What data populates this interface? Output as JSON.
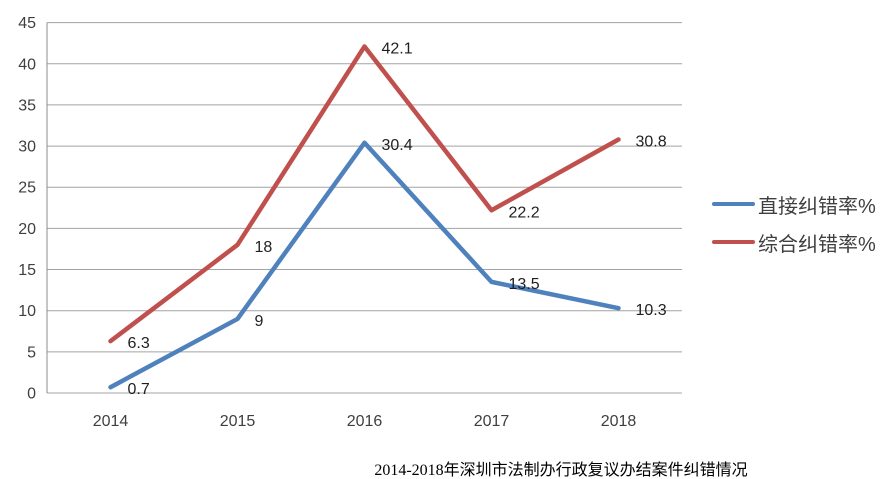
{
  "chart_data": {
    "type": "line",
    "title": "2014-2018年深圳市法制办行政复议办结案件纠错情况",
    "xlabel": "",
    "ylabel": "",
    "categories": [
      "2014",
      "2015",
      "2016",
      "2017",
      "2018"
    ],
    "series": [
      {
        "name": "直接纠错率%",
        "values": [
          0.7,
          9,
          30.4,
          13.5,
          10.3
        ],
        "labels": [
          "0.7",
          "9",
          "30.4",
          "13.5",
          "10.3"
        ],
        "color": "#4F81BD"
      },
      {
        "name": "综合纠错率%",
        "values": [
          6.3,
          18,
          42.1,
          22.2,
          30.8
        ],
        "labels": [
          "6.3",
          "18",
          "42.1",
          "22.2",
          "30.8"
        ],
        "color": "#C0504D"
      }
    ],
    "ylim": [
      0,
      45
    ],
    "ytick_step": 5,
    "grid": true,
    "legend_position": "right"
  },
  "colors": {
    "background": "#FFFFFF",
    "gridline": "#A3A3A3",
    "axis_line": "#8C8C8C",
    "tick_text": "#3F3F3F",
    "data_label_text": "#1F1F1F"
  }
}
